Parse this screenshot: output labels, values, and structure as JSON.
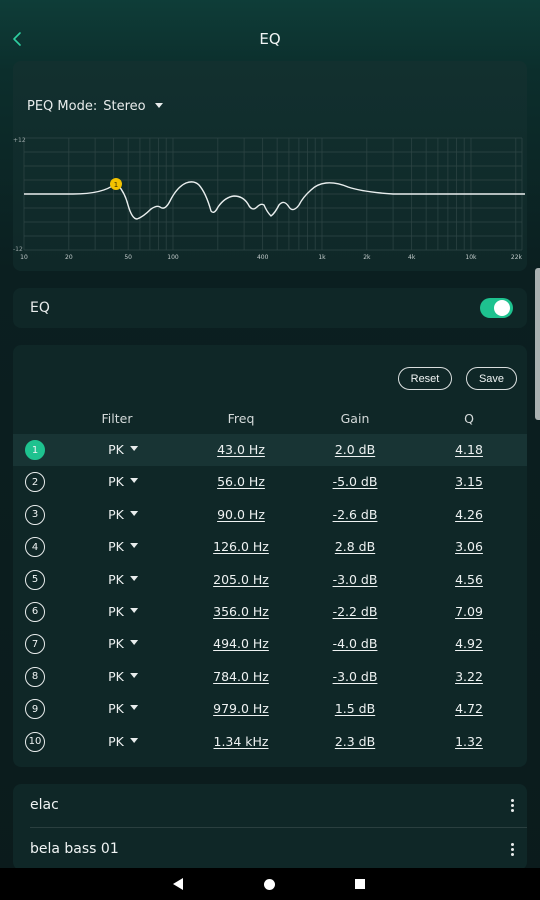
{
  "header": {
    "title": "EQ",
    "back_icon": "chevron-left-icon"
  },
  "graph": {
    "mode_label": "PEQ Mode:",
    "mode_value": "Stereo",
    "y_max_label": "+12",
    "y_min_label": "-12",
    "x_ticks": [
      "10",
      "20",
      "50",
      "100",
      "400",
      "1k",
      "2k",
      "4k",
      "10k",
      "22k"
    ],
    "selected_band_marker": "1",
    "curve_color": "#ffffff",
    "marker_color": "#f2c200"
  },
  "eq": {
    "label": "EQ",
    "enabled": true,
    "toggle_color": "#1ec28f"
  },
  "bands": {
    "reset_label": "Reset",
    "save_label": "Save",
    "columns": {
      "filter": "Filter",
      "freq": "Freq",
      "gain": "Gain",
      "q": "Q"
    },
    "active_index": 0,
    "rows": [
      {
        "index": "1",
        "filter": "PK",
        "freq": "43.0 Hz",
        "gain": "2.0 dB",
        "q": "4.18"
      },
      {
        "index": "2",
        "filter": "PK",
        "freq": "56.0 Hz",
        "gain": "-5.0 dB",
        "q": "3.15"
      },
      {
        "index": "3",
        "filter": "PK",
        "freq": "90.0 Hz",
        "gain": "-2.6 dB",
        "q": "4.26"
      },
      {
        "index": "4",
        "filter": "PK",
        "freq": "126.0 Hz",
        "gain": "2.8 dB",
        "q": "3.06"
      },
      {
        "index": "5",
        "filter": "PK",
        "freq": "205.0 Hz",
        "gain": "-3.0 dB",
        "q": "4.56"
      },
      {
        "index": "6",
        "filter": "PK",
        "freq": "356.0 Hz",
        "gain": "-2.2 dB",
        "q": "7.09"
      },
      {
        "index": "7",
        "filter": "PK",
        "freq": "494.0 Hz",
        "gain": "-4.0 dB",
        "q": "4.92"
      },
      {
        "index": "8",
        "filter": "PK",
        "freq": "784.0 Hz",
        "gain": "-3.0 dB",
        "q": "3.22"
      },
      {
        "index": "9",
        "filter": "PK",
        "freq": "979.0 Hz",
        "gain": "1.5 dB",
        "q": "4.72"
      },
      {
        "index": "10",
        "filter": "PK",
        "freq": "1.34 kHz",
        "gain": "2.3 dB",
        "q": "1.32"
      }
    ]
  },
  "presets": {
    "items": [
      {
        "name": "elac"
      },
      {
        "name": "bela bass 01"
      }
    ]
  },
  "navbar": {
    "back_icon": "triangle-back-icon",
    "home_icon": "circle-home-icon",
    "recents_icon": "square-recents-icon"
  }
}
